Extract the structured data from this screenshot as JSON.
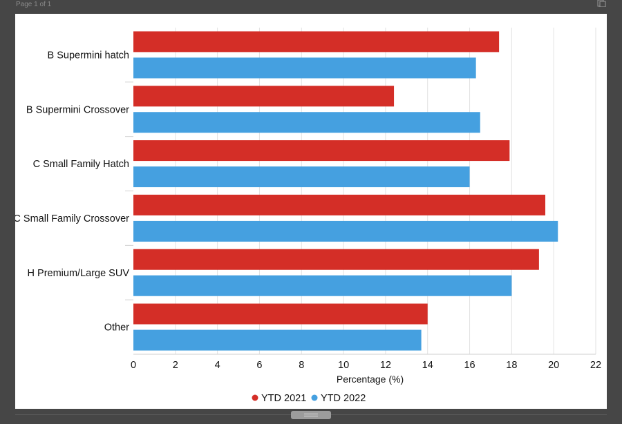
{
  "viewer": {
    "page_indicator": "Page 1 of 1",
    "copy_icon": "copy-icon",
    "resize_icon": "drag-handle-icon"
  },
  "chart_data": {
    "type": "bar",
    "orientation": "horizontal",
    "title": "",
    "xlabel": "Percentage (%)",
    "ylabel": "",
    "xlim": [
      0,
      22
    ],
    "xticks": [
      0,
      2,
      4,
      6,
      8,
      10,
      12,
      14,
      16,
      18,
      20,
      22
    ],
    "grid": true,
    "legend_position": "bottom",
    "categories": [
      "B Supermini hatch",
      "B Supermini Crossover",
      "C Small Family Hatch",
      "C Small Family Crossover",
      "H Premium/Large SUV",
      "Other"
    ],
    "series": [
      {
        "name": "YTD 2021",
        "color": "#d42e27",
        "values": [
          17.4,
          12.4,
          17.9,
          19.6,
          19.3,
          14.0
        ]
      },
      {
        "name": "YTD 2022",
        "color": "#45a0e0",
        "values": [
          16.3,
          16.5,
          16.0,
          20.2,
          18.0,
          13.7
        ]
      }
    ]
  }
}
